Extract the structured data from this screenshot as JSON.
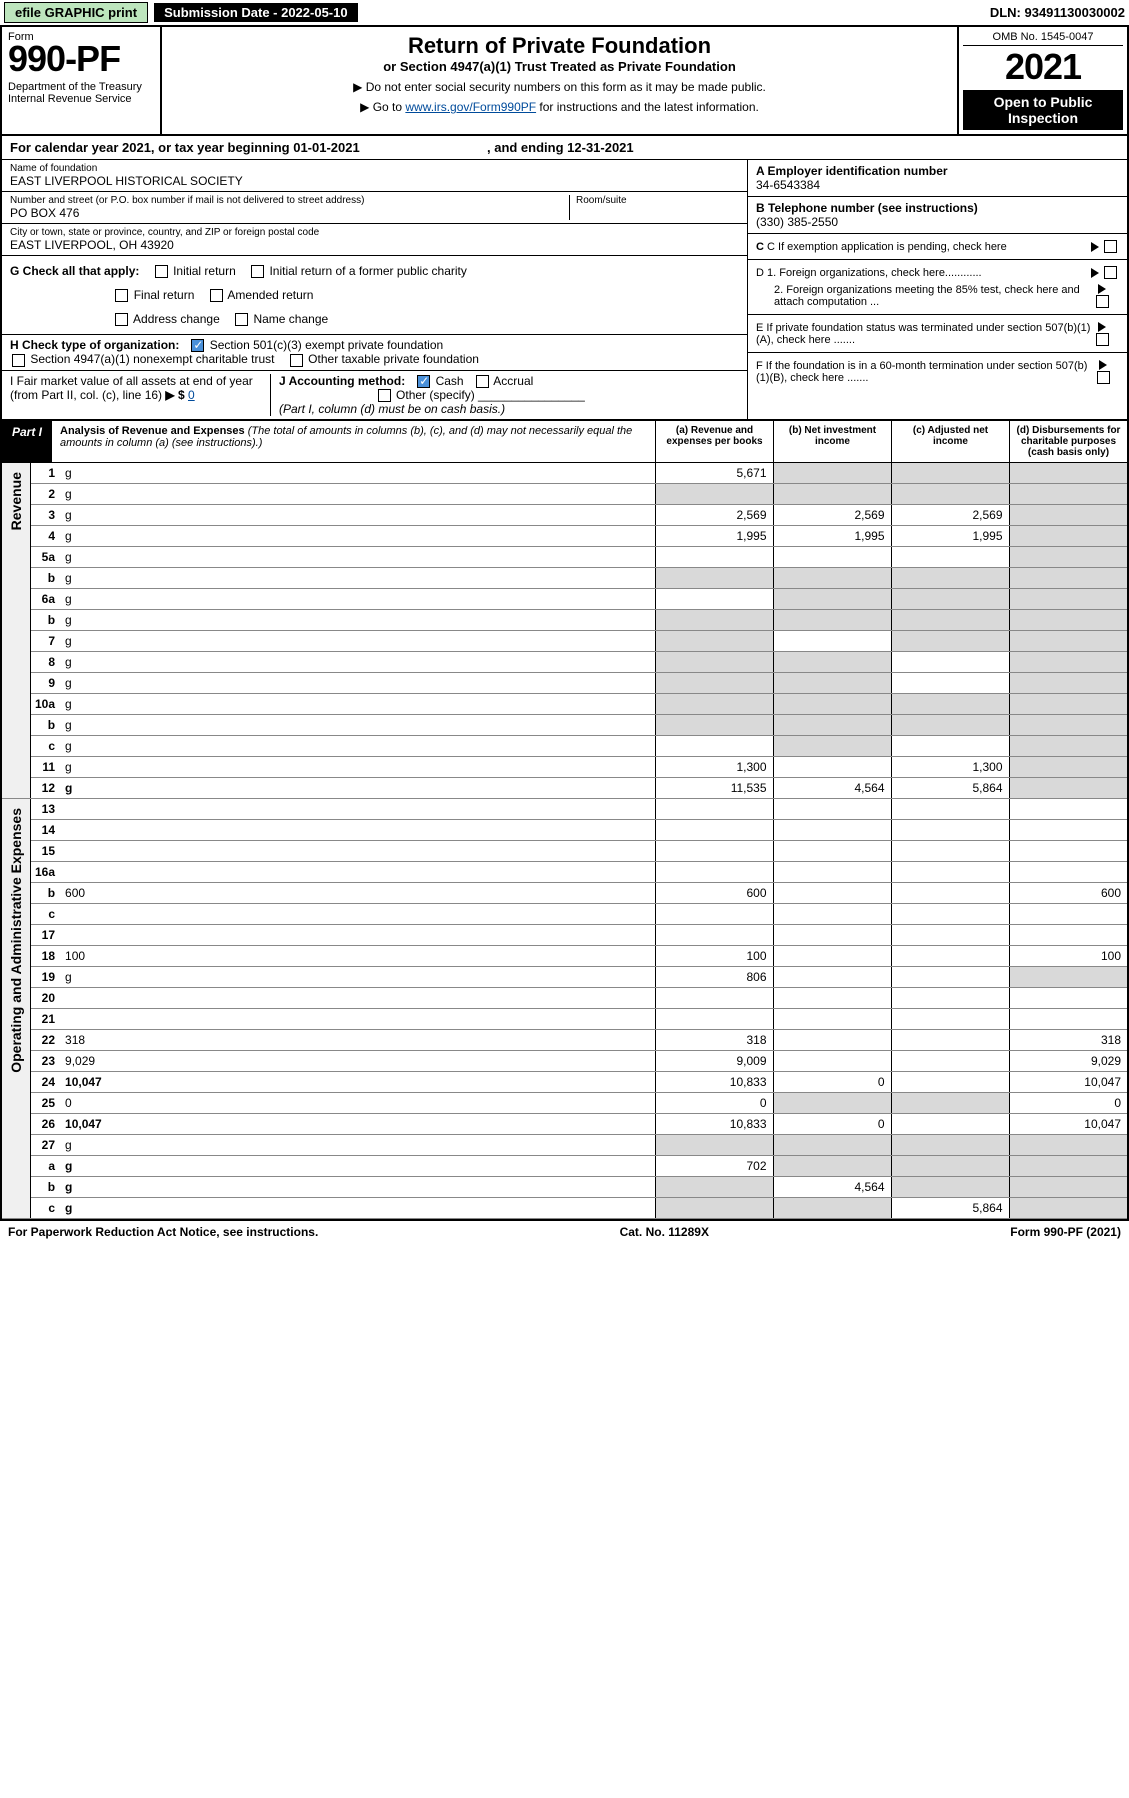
{
  "topbar": {
    "efile": "efile GRAPHIC print",
    "subdate_label": "Submission Date - 2022-05-10",
    "dln": "DLN: 93491130030002"
  },
  "header": {
    "form_word": "Form",
    "form_number": "990-PF",
    "dept": "Department of the Treasury\nInternal Revenue Service",
    "title": "Return of Private Foundation",
    "subtitle": "or Section 4947(a)(1) Trust Treated as Private Foundation",
    "instr1": "▶ Do not enter social security numbers on this form as it may be made public.",
    "instr2_pre": "▶ Go to ",
    "instr2_link": "www.irs.gov/Form990PF",
    "instr2_post": " for instructions and the latest information.",
    "omb": "OMB No. 1545-0047",
    "year": "2021",
    "open": "Open to Public Inspection"
  },
  "cal": {
    "text_a": "For calendar year 2021, or tax year beginning 01-01-2021",
    "text_b": ", and ending 12-31-2021"
  },
  "id": {
    "name_lbl": "Name of foundation",
    "name": "EAST LIVERPOOL HISTORICAL SOCIETY",
    "addr_lbl": "Number and street (or P.O. box number if mail is not delivered to street address)",
    "addr": "PO BOX 476",
    "room_lbl": "Room/suite",
    "city_lbl": "City or town, state or province, country, and ZIP or foreign postal code",
    "city": "EAST LIVERPOOL, OH  43920",
    "a_lbl": "A Employer identification number",
    "a_val": "34-6543384",
    "b_lbl": "B Telephone number (see instructions)",
    "b_val": "(330) 385-2550",
    "c_lbl": "C If exemption application is pending, check here",
    "d1": "D 1. Foreign organizations, check here............",
    "d2": "2. Foreign organizations meeting the 85% test, check here and attach computation ...",
    "e": "E  If private foundation status was terminated under section 507(b)(1)(A), check here .......",
    "f": "F  If the foundation is in a 60-month termination under section 507(b)(1)(B), check here .......",
    "g_lbl": "G Check all that apply:",
    "g_opts": [
      "Initial return",
      "Initial return of a former public charity",
      "Final return",
      "Amended return",
      "Address change",
      "Name change"
    ],
    "h_lbl": "H Check type of organization:",
    "h1": "Section 501(c)(3) exempt private foundation",
    "h2": "Section 4947(a)(1) nonexempt charitable trust",
    "h3": "Other taxable private foundation",
    "i_lbl": "I Fair market value of all assets at end of year (from Part II, col. (c), line 16)",
    "i_val": "0",
    "j_lbl": "J Accounting method:",
    "j_cash": "Cash",
    "j_accr": "Accrual",
    "j_other": "Other (specify)",
    "j_note": "(Part I, column (d) must be on cash basis.)"
  },
  "part1": {
    "label": "Part I",
    "title": "Analysis of Revenue and Expenses",
    "title_note": " (The total of amounts in columns (b), (c), and (d) may not necessarily equal the amounts in column (a) (see instructions).)",
    "col_a": "(a)  Revenue and expenses per books",
    "col_b": "(b)  Net investment income",
    "col_c": "(c)  Adjusted net income",
    "col_d": "(d)  Disbursements for charitable purposes (cash basis only)"
  },
  "sidelabels": {
    "rev": "Revenue",
    "exp": "Operating and Administrative Expenses"
  },
  "rows": [
    {
      "n": "1",
      "d": "g",
      "a": "5,671",
      "b": "g",
      "c": "g"
    },
    {
      "n": "2",
      "d": "g",
      "a": "g",
      "b": "g",
      "c": "g"
    },
    {
      "n": "3",
      "d": "g",
      "a": "2,569",
      "b": "2,569",
      "c": "2,569"
    },
    {
      "n": "4",
      "d": "g",
      "a": "1,995",
      "b": "1,995",
      "c": "1,995"
    },
    {
      "n": "5a",
      "d": "g",
      "a": "",
      "b": "",
      "c": ""
    },
    {
      "n": "b",
      "d": "g",
      "a": "g",
      "b": "g",
      "c": "g"
    },
    {
      "n": "6a",
      "d": "g",
      "a": "",
      "b": "g",
      "c": "g"
    },
    {
      "n": "b",
      "d": "g",
      "a": "g",
      "b": "g",
      "c": "g"
    },
    {
      "n": "7",
      "d": "g",
      "a": "g",
      "b": "",
      "c": "g"
    },
    {
      "n": "8",
      "d": "g",
      "a": "g",
      "b": "g",
      "c": ""
    },
    {
      "n": "9",
      "d": "g",
      "a": "g",
      "b": "g",
      "c": ""
    },
    {
      "n": "10a",
      "d": "g",
      "a": "g",
      "b": "g",
      "c": "g"
    },
    {
      "n": "b",
      "d": "g",
      "a": "g",
      "b": "g",
      "c": "g"
    },
    {
      "n": "c",
      "d": "g",
      "a": "",
      "b": "g",
      "c": ""
    },
    {
      "n": "11",
      "d": "g",
      "a": "1,300",
      "b": "",
      "c": "1,300"
    },
    {
      "n": "12",
      "d": "g",
      "a": "11,535",
      "b": "4,564",
      "c": "5,864",
      "bold": true
    },
    {
      "n": "13",
      "d": "",
      "a": "",
      "b": "",
      "c": ""
    },
    {
      "n": "14",
      "d": "",
      "a": "",
      "b": "",
      "c": ""
    },
    {
      "n": "15",
      "d": "",
      "a": "",
      "b": "",
      "c": ""
    },
    {
      "n": "16a",
      "d": "",
      "a": "",
      "b": "",
      "c": ""
    },
    {
      "n": "b",
      "d": "600",
      "a": "600",
      "b": "",
      "c": ""
    },
    {
      "n": "c",
      "d": "",
      "a": "",
      "b": "",
      "c": ""
    },
    {
      "n": "17",
      "d": "",
      "a": "",
      "b": "",
      "c": ""
    },
    {
      "n": "18",
      "d": "100",
      "a": "100",
      "b": "",
      "c": ""
    },
    {
      "n": "19",
      "d": "g",
      "a": "806",
      "b": "",
      "c": ""
    },
    {
      "n": "20",
      "d": "",
      "a": "",
      "b": "",
      "c": ""
    },
    {
      "n": "21",
      "d": "",
      "a": "",
      "b": "",
      "c": ""
    },
    {
      "n": "22",
      "d": "318",
      "a": "318",
      "b": "",
      "c": ""
    },
    {
      "n": "23",
      "d": "9,029",
      "a": "9,009",
      "b": "",
      "c": ""
    },
    {
      "n": "24",
      "d": "10,047",
      "a": "10,833",
      "b": "0",
      "c": "",
      "bold": true
    },
    {
      "n": "25",
      "d": "0",
      "a": "0",
      "b": "g",
      "c": "g"
    },
    {
      "n": "26",
      "d": "10,047",
      "a": "10,833",
      "b": "0",
      "c": "",
      "bold": true
    },
    {
      "n": "27",
      "d": "g",
      "a": "g",
      "b": "g",
      "c": "g"
    },
    {
      "n": "a",
      "d": "g",
      "a": "702",
      "b": "g",
      "c": "g",
      "bold": true
    },
    {
      "n": "b",
      "d": "g",
      "a": "g",
      "b": "4,564",
      "c": "g",
      "bold": true
    },
    {
      "n": "c",
      "d": "g",
      "a": "g",
      "b": "g",
      "c": "5,864",
      "bold": true
    }
  ],
  "footer": {
    "left": "For Paperwork Reduction Act Notice, see instructions.",
    "mid": "Cat. No. 11289X",
    "right": "Form 990-PF (2021)"
  },
  "colors": {
    "grey": "#d9d9d9",
    "link": "#004b9b",
    "efile_bg": "#bde5bd",
    "chk_on": "#4a90d9"
  }
}
